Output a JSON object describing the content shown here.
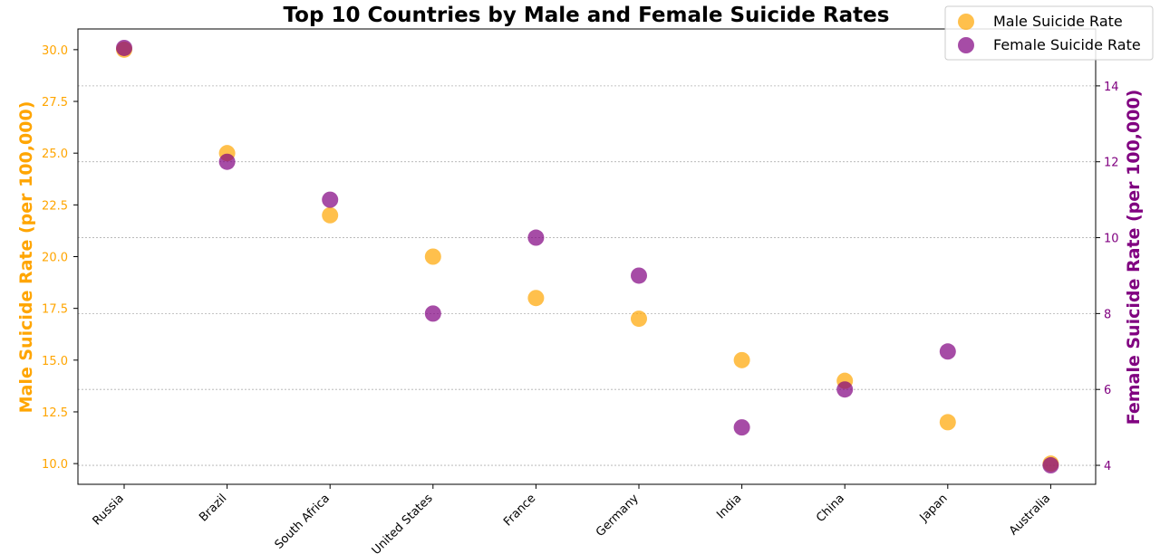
{
  "chart_data": {
    "type": "scatter",
    "title": "Top 10 Countries by Male and Female Suicide Rates",
    "categories": [
      "Russia",
      "Brazil",
      "South Africa",
      "United States",
      "France",
      "Germany",
      "India",
      "China",
      "Japan",
      "Australia"
    ],
    "series": [
      {
        "name": "Male Suicide Rate",
        "axis": "left",
        "color": "#FFA500",
        "values": [
          30.0,
          25.0,
          22.0,
          20.0,
          18.0,
          17.0,
          15.0,
          14.0,
          12.0,
          10.0
        ]
      },
      {
        "name": "Female Suicide Rate",
        "axis": "right",
        "color": "#800080",
        "values": [
          15,
          12,
          11,
          8,
          10,
          9,
          5,
          6,
          7,
          4
        ]
      }
    ],
    "ylabel_left": "Male Suicide Rate (per 100,000)",
    "ylabel_right": "Female Suicide Rate (per 100,000)",
    "ylim_left": [
      9,
      31
    ],
    "ylim_right": [
      3.5,
      15.5
    ],
    "yticks_left": [
      "10.0",
      "12.5",
      "15.0",
      "17.5",
      "20.0",
      "22.5",
      "25.0",
      "27.5",
      "30.0"
    ],
    "yticks_right": [
      "4",
      "6",
      "8",
      "10",
      "12",
      "14"
    ],
    "grid": "horizontal dashed (right axis)",
    "legend_position": "top-right"
  }
}
